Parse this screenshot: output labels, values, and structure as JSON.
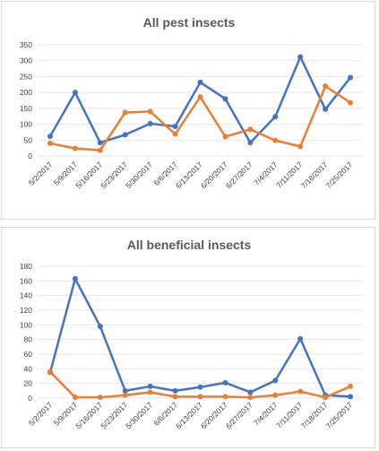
{
  "chart_data": [
    {
      "type": "line",
      "title": "All pest insects",
      "categories": [
        "5/2/2017",
        "5/9/2017",
        "5/16/2017",
        "5/23/2017",
        "5/30/2017",
        "6/6/2017",
        "6/13/2017",
        "6/20/2017",
        "6/27/2017",
        "7/4/2017",
        "7/11/2017",
        "7/18/2017",
        "7/25/2017"
      ],
      "series": [
        {
          "color": "#4472c4",
          "values": [
            62,
            200,
            42,
            67,
            102,
            93,
            232,
            180,
            42,
            124,
            312,
            147,
            247
          ]
        },
        {
          "color": "#ed7d31",
          "values": [
            40,
            24,
            18,
            137,
            140,
            69,
            186,
            61,
            84,
            49,
            30,
            220,
            168
          ]
        }
      ],
      "yticks": [
        "0",
        "50",
        "100",
        "150",
        "200",
        "250",
        "300",
        "350"
      ],
      "ylim": [
        0,
        350
      ],
      "grid": true,
      "legend": "none"
    },
    {
      "type": "line",
      "title": "All beneficial insects",
      "categories": [
        "5/2/2017",
        "5/9/2017",
        "5/16/2017",
        "5/23/2017",
        "5/30/2017",
        "6/6/2017",
        "6/13/2017",
        "6/20/2017",
        "6/27/2017",
        "7/4/2017",
        "7/11/2017",
        "7/18/2017",
        "7/25/2017"
      ],
      "series": [
        {
          "color": "#4472c4",
          "values": [
            35,
            163,
            98,
            10,
            16,
            10,
            15,
            21,
            8,
            24,
            81,
            4,
            2
          ]
        },
        {
          "color": "#ed7d31",
          "values": [
            36,
            1,
            1,
            4,
            8,
            2,
            2,
            2,
            1,
            4,
            9,
            1,
            16
          ]
        }
      ],
      "yticks": [
        "0",
        "20",
        "40",
        "60",
        "80",
        "100",
        "120",
        "140",
        "160",
        "180"
      ],
      "ylim": [
        0,
        180
      ],
      "grid": true,
      "legend": "none"
    }
  ]
}
